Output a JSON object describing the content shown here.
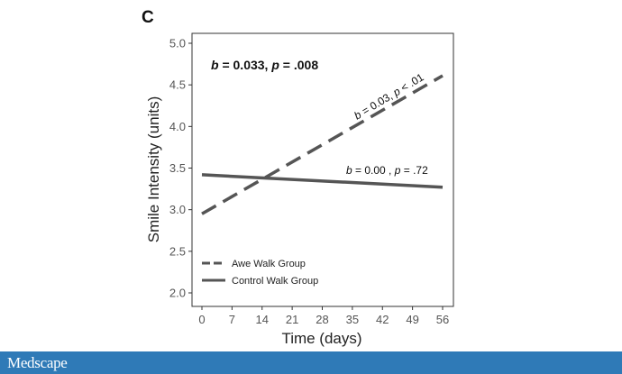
{
  "panel_label": "C",
  "brand": {
    "name": "Medscape",
    "color": "#2f7ab7"
  },
  "chart_data": {
    "type": "line",
    "title": "",
    "xlabel": "Time (days)",
    "ylabel": "Smile Intensity (units)",
    "xlim": [
      0,
      56
    ],
    "ylim": [
      2.0,
      5.0
    ],
    "x_ticks": [
      0,
      7,
      14,
      21,
      28,
      35,
      42,
      49,
      56
    ],
    "y_ticks": [
      "2.0",
      "2.5",
      "3.0",
      "3.5",
      "4.0",
      "4.5",
      "5.0"
    ],
    "grid": false,
    "legend_position": "bottom-left",
    "series": [
      {
        "name": "Awe Walk Group",
        "style": "dashed",
        "color": "#555555",
        "x": [
          0,
          56
        ],
        "y": [
          2.95,
          4.61
        ]
      },
      {
        "name": "Control Walk Group",
        "style": "solid",
        "color": "#555555",
        "x": [
          0,
          56
        ],
        "y": [
          3.42,
          3.27
        ]
      }
    ],
    "annotations": {
      "overall": {
        "b_label": "b",
        "b_value": " = 0.033, ",
        "p_label": "p",
        "p_value": " = .008"
      },
      "awe": {
        "b_label": "b",
        "b_value": " = 0.03, ",
        "p_label": "p",
        "p_value": " < .01"
      },
      "control": {
        "b_label": "b",
        "b_value": " = 0.00 , ",
        "p_label": "p",
        "p_value": " = .72"
      }
    }
  }
}
